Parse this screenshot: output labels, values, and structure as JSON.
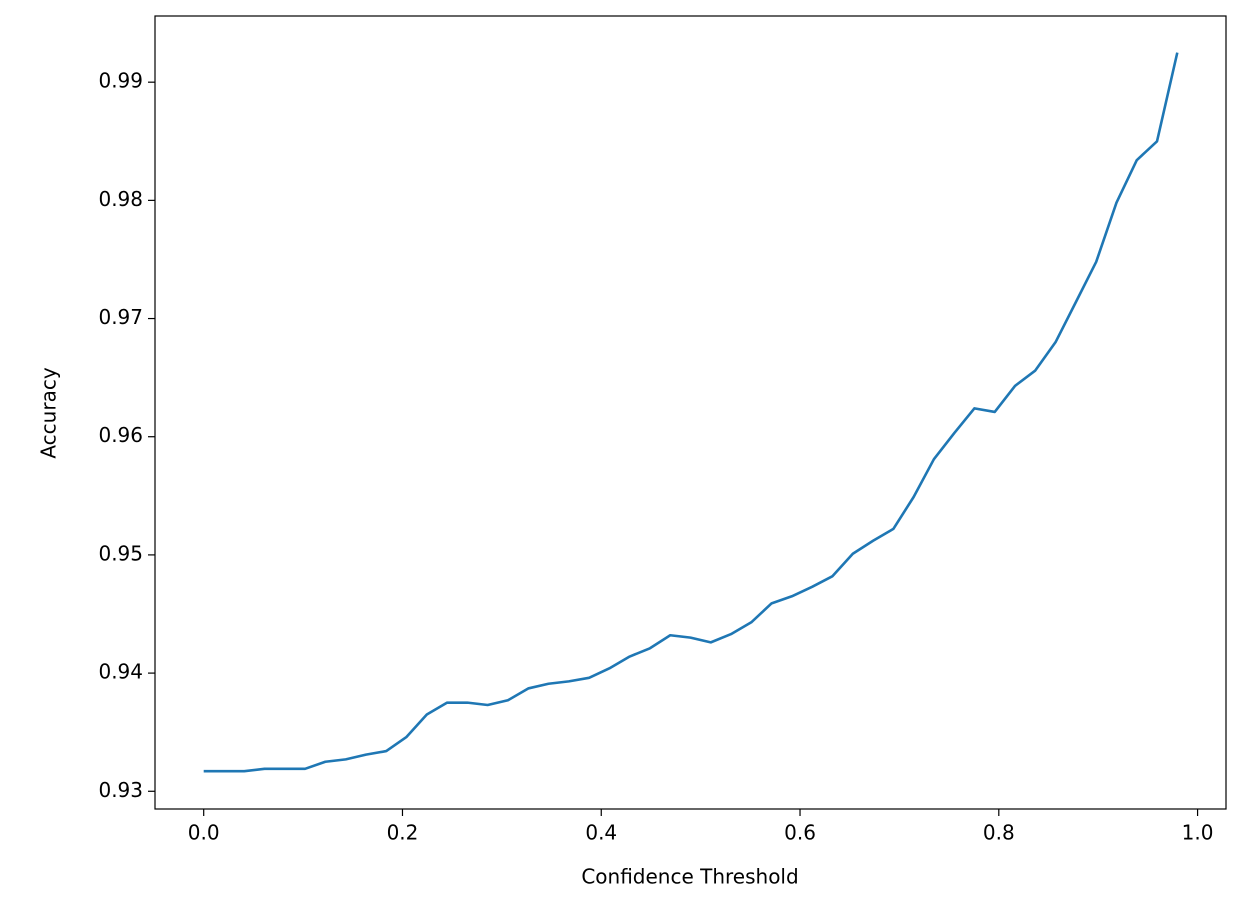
{
  "chart_data": {
    "type": "line",
    "x_label": "Confidence Threshold",
    "y_label": "Accuracy",
    "x": [
      0,
      0.0204,
      0.0408,
      0.0612,
      0.0816,
      0.102,
      0.1224,
      0.1429,
      0.1633,
      0.1837,
      0.2041,
      0.2245,
      0.2449,
      0.2653,
      0.2857,
      0.3061,
      0.3265,
      0.3469,
      0.3673,
      0.3878,
      0.4082,
      0.4286,
      0.449,
      0.4694,
      0.4898,
      0.5102,
      0.5306,
      0.551,
      0.5714,
      0.5918,
      0.6122,
      0.6327,
      0.6531,
      0.6735,
      0.6939,
      0.7143,
      0.7347,
      0.7551,
      0.7755,
      0.7959,
      0.8163,
      0.8367,
      0.8571,
      0.8776,
      0.898,
      0.9184,
      0.9388,
      0.9592,
      0.9796
    ],
    "series": [
      {
        "color": "#1f77b4",
        "values": [
          0.9317,
          0.9317,
          0.9317,
          0.9319,
          0.9319,
          0.9319,
          0.9325,
          0.9327,
          0.9331,
          0.9334,
          0.9346,
          0.9365,
          0.9375,
          0.9375,
          0.9373,
          0.9377,
          0.9387,
          0.9391,
          0.9393,
          0.9396,
          0.9404,
          0.9414,
          0.9421,
          0.9432,
          0.943,
          0.9426,
          0.9433,
          0.9443,
          0.9459,
          0.9465,
          0.9473,
          0.9482,
          0.9501,
          0.9512,
          0.9522,
          0.9549,
          0.9581,
          0.9603,
          0.9624,
          0.9621,
          0.9643,
          0.9656,
          0.968,
          0.9714,
          0.9748,
          0.9798,
          0.9834,
          0.985,
          0.9925
        ]
      }
    ],
    "xlim": [
      -0.049,
      1.0286
    ],
    "ylim": [
      0.9285,
      0.9956
    ],
    "xticks": [
      {
        "value": 0,
        "label": "0.0"
      },
      0.2,
      0.4,
      0.6,
      0.8,
      {
        "value": 1,
        "label": "1.0"
      }
    ],
    "yticks": [
      0.93,
      0.94,
      0.95,
      0.96,
      0.97,
      0.98,
      0.99
    ]
  }
}
